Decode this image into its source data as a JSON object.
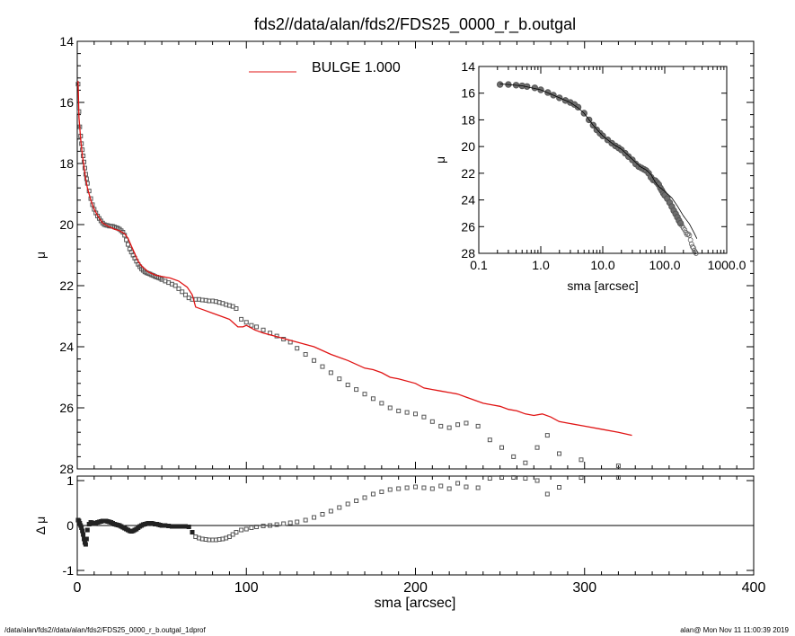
{
  "title": "fds2//data/alan/fds2/FDS25_0000_r_b.outgal",
  "footer_left": "/data/alan/fds2//data/alan/fds2/FDS25_0000_r_b.outgal_1dprof",
  "footer_right": "alan@  Mon Nov 11 11:00:39 2019",
  "colors": {
    "model": "#e01414",
    "data": "#555555",
    "axis": "#000000"
  },
  "chart_data": [
    {
      "id": "main",
      "type": "scatter",
      "ylabel": "μ",
      "xlim": [
        0,
        400
      ],
      "ylim": [
        14,
        28
      ],
      "y_inverted": true,
      "yticks": [
        14,
        16,
        18,
        20,
        22,
        24,
        26,
        28
      ],
      "legend": {
        "label": "BULGE  1.000",
        "placement": "top-center"
      },
      "series": [
        {
          "name": "BULGE  1.000",
          "kind": "line",
          "x": [
            0.5,
            1,
            2,
            3,
            4,
            5,
            6,
            8,
            10,
            12,
            15,
            18,
            20,
            22,
            25,
            28,
            30,
            32,
            34,
            36,
            38,
            40,
            42,
            44,
            46,
            50,
            55,
            60,
            65,
            68,
            70,
            75,
            80,
            85,
            90,
            93,
            95,
            98,
            100,
            105,
            110,
            120,
            130,
            140,
            150,
            160,
            170,
            175,
            180,
            185,
            190,
            200,
            205,
            210,
            215,
            220,
            225,
            230,
            235,
            240,
            245,
            250,
            255,
            260,
            265,
            270,
            275,
            280,
            285,
            290,
            300,
            310,
            320,
            328
          ],
          "y": [
            15.3,
            16.5,
            17.2,
            17.7,
            18.1,
            18.5,
            18.8,
            19.2,
            19.5,
            19.7,
            19.95,
            20.05,
            20.1,
            20.15,
            20.2,
            20.3,
            20.45,
            20.7,
            20.95,
            21.2,
            21.35,
            21.45,
            21.55,
            21.6,
            21.65,
            21.7,
            21.75,
            21.85,
            22.05,
            22.3,
            22.7,
            22.8,
            22.9,
            23.0,
            23.1,
            23.25,
            23.35,
            23.35,
            23.3,
            23.45,
            23.55,
            23.7,
            23.85,
            24.0,
            24.25,
            24.45,
            24.7,
            24.75,
            24.85,
            25.0,
            25.05,
            25.2,
            25.35,
            25.4,
            25.45,
            25.5,
            25.55,
            25.65,
            25.75,
            25.85,
            25.9,
            25.95,
            26.05,
            26.1,
            26.2,
            26.25,
            26.2,
            26.3,
            26.45,
            26.5,
            26.6,
            26.7,
            26.8,
            26.9
          ]
        },
        {
          "name": "data",
          "kind": "points",
          "x": [
            0.5,
            1,
            1.5,
            2,
            2.5,
            3,
            3.5,
            4,
            4.5,
            5,
            5.5,
            6,
            7,
            8,
            9,
            10,
            11,
            12,
            13,
            14,
            15,
            16,
            17,
            18,
            19,
            20,
            21,
            22,
            23,
            24,
            25,
            26,
            27,
            28,
            29,
            30,
            31,
            32,
            33,
            34,
            35,
            36,
            37,
            38,
            39,
            40,
            41,
            42,
            43,
            44,
            45,
            46,
            47,
            48,
            49,
            50,
            52,
            54,
            56,
            58,
            60,
            62,
            64,
            66,
            68,
            70,
            72,
            74,
            76,
            78,
            80,
            82,
            84,
            86,
            88,
            90,
            92,
            94,
            97,
            100,
            103,
            106,
            110,
            114,
            118,
            122,
            126,
            130,
            135,
            140,
            145,
            150,
            155,
            160,
            165,
            170,
            175,
            180,
            185,
            190,
            195,
            200,
            205,
            210,
            215,
            220,
            225,
            230,
            237,
            244,
            251,
            258,
            265,
            272,
            278,
            285,
            298,
            320
          ],
          "y": [
            15.4,
            16.3,
            16.8,
            17.1,
            17.35,
            17.55,
            17.75,
            17.95,
            18.15,
            18.35,
            18.5,
            18.65,
            18.9,
            19.15,
            19.35,
            19.5,
            19.62,
            19.72,
            19.8,
            19.88,
            19.95,
            20.0,
            20.02,
            20.03,
            20.05,
            20.05,
            20.06,
            20.08,
            20.1,
            20.12,
            20.15,
            20.2,
            20.25,
            20.35,
            20.5,
            20.65,
            20.8,
            20.9,
            21.0,
            21.1,
            21.2,
            21.3,
            21.38,
            21.45,
            21.5,
            21.55,
            21.58,
            21.6,
            21.62,
            21.65,
            21.67,
            21.7,
            21.72,
            21.74,
            21.76,
            21.8,
            21.85,
            21.9,
            21.95,
            22.0,
            22.1,
            22.2,
            22.3,
            22.4,
            22.45,
            22.45,
            22.45,
            22.47,
            22.48,
            22.5,
            22.5,
            22.52,
            22.55,
            22.58,
            22.62,
            22.65,
            22.68,
            22.75,
            23.1,
            23.2,
            23.3,
            23.35,
            23.45,
            23.55,
            23.65,
            23.75,
            23.85,
            24.05,
            24.25,
            24.45,
            24.65,
            24.85,
            25.05,
            25.25,
            25.4,
            25.55,
            25.7,
            25.85,
            26.0,
            26.1,
            26.15,
            26.2,
            26.3,
            26.45,
            26.6,
            26.65,
            26.55,
            26.5,
            26.6,
            27.05,
            27.3,
            27.6,
            27.8,
            27.3,
            26.9,
            27.5,
            27.7,
            27.9
          ]
        }
      ]
    },
    {
      "id": "residuals",
      "type": "scatter",
      "xlabel": "sma [arcsec]",
      "ylabel": "Δ μ",
      "xlim": [
        0,
        400
      ],
      "ylim": [
        -1.1,
        1.1
      ],
      "xticks": [
        0,
        100,
        200,
        300,
        400
      ],
      "yticks": [
        -1,
        0,
        1
      ],
      "zero_line": true,
      "series": [
        {
          "name": "residuals",
          "x": [
            0.5,
            1,
            1.5,
            2,
            2.5,
            3,
            3.5,
            4,
            4.5,
            5,
            5.5,
            6,
            7,
            8,
            9,
            10,
            11,
            12,
            13,
            14,
            15,
            16,
            17,
            18,
            19,
            20,
            21,
            22,
            23,
            24,
            25,
            26,
            27,
            28,
            29,
            30,
            31,
            32,
            33,
            34,
            35,
            36,
            37,
            38,
            39,
            40,
            41,
            42,
            43,
            44,
            45,
            46,
            47,
            48,
            49,
            50,
            52,
            54,
            56,
            58,
            60,
            62,
            64,
            66,
            68,
            70,
            72,
            74,
            76,
            78,
            80,
            82,
            84,
            86,
            88,
            90,
            92,
            94,
            97,
            100,
            103,
            106,
            110,
            114,
            118,
            122,
            126,
            130,
            135,
            140,
            145,
            150,
            155,
            160,
            165,
            170,
            175,
            180,
            185,
            190,
            195,
            200,
            205,
            210,
            215,
            220,
            225,
            230,
            237,
            244,
            251,
            258,
            265,
            272,
            278,
            285,
            298,
            320
          ],
          "y": [
            0.12,
            0.1,
            0.05,
            0.0,
            -0.05,
            -0.12,
            -0.2,
            -0.3,
            -0.38,
            -0.42,
            -0.3,
            -0.1,
            0.03,
            0.07,
            0.06,
            0.04,
            0.05,
            0.07,
            0.08,
            0.09,
            0.1,
            0.1,
            0.1,
            0.09,
            0.08,
            0.07,
            0.05,
            0.03,
            0.02,
            0.01,
            0.0,
            -0.02,
            -0.04,
            -0.06,
            -0.08,
            -0.1,
            -0.12,
            -0.13,
            -0.12,
            -0.1,
            -0.08,
            -0.05,
            -0.02,
            0.0,
            0.02,
            0.03,
            0.04,
            0.05,
            0.05,
            0.05,
            0.04,
            0.03,
            0.03,
            0.02,
            0.01,
            0.0,
            0.0,
            -0.01,
            -0.02,
            -0.02,
            -0.02,
            -0.02,
            -0.02,
            -0.03,
            -0.15,
            -0.25,
            -0.28,
            -0.3,
            -0.31,
            -0.32,
            -0.32,
            -0.32,
            -0.31,
            -0.3,
            -0.28,
            -0.25,
            -0.2,
            -0.15,
            -0.1,
            -0.08,
            -0.05,
            -0.03,
            -0.01,
            0.0,
            0.02,
            0.04,
            0.06,
            0.08,
            0.12,
            0.18,
            0.25,
            0.32,
            0.4,
            0.48,
            0.55,
            0.62,
            0.7,
            0.75,
            0.8,
            0.82,
            0.84,
            0.86,
            0.84,
            0.82,
            0.88,
            0.82,
            0.94,
            0.86,
            0.84,
            1.05,
            1.12,
            1.15,
            1.05,
            1.0,
            0.7,
            0.85,
            1.1,
            1.15
          ]
        }
      ]
    },
    {
      "id": "inset",
      "type": "scatter",
      "xlabel": "sma [arcsec]",
      "ylabel": "μ",
      "x_scale": "log",
      "xlim": [
        0.1,
        1000
      ],
      "ylim": [
        14,
        28
      ],
      "y_inverted": true,
      "xticks": [
        0.1,
        1,
        10,
        100,
        1000
      ],
      "xtick_labels": [
        "0.1",
        "1.0",
        "10.0",
        "100.0",
        "1000.0"
      ],
      "yticks": [
        14,
        16,
        18,
        20,
        22,
        24,
        26,
        28
      ],
      "series": [
        {
          "name": "data",
          "kind": "points",
          "x": [
            0.22,
            0.3,
            0.4,
            0.5,
            0.6,
            0.8,
            1.0,
            1.3,
            1.6,
            2.0,
            2.5,
            3.0,
            3.5,
            4.0,
            5.0,
            6.0,
            7.0,
            8.0,
            9.0,
            10,
            12,
            14,
            16,
            18,
            20,
            23,
            26,
            30,
            34,
            38,
            42,
            46,
            50,
            55,
            60,
            65,
            70,
            75,
            80,
            85,
            90,
            95,
            100,
            110,
            120,
            130,
            140,
            150,
            160,
            170,
            180,
            190,
            200,
            210,
            220,
            230,
            240,
            250,
            260,
            270,
            280,
            290,
            300,
            310,
            320
          ],
          "y": [
            15.35,
            15.35,
            15.4,
            15.45,
            15.5,
            15.6,
            15.75,
            15.95,
            16.15,
            16.35,
            16.55,
            16.7,
            16.85,
            17.05,
            17.5,
            18.0,
            18.4,
            18.75,
            19.0,
            19.2,
            19.5,
            19.75,
            19.95,
            20.1,
            20.25,
            20.5,
            20.75,
            21.0,
            21.3,
            21.5,
            21.6,
            21.7,
            21.8,
            22.0,
            22.3,
            22.5,
            22.55,
            22.7,
            22.85,
            23.1,
            23.3,
            23.5,
            23.65,
            23.9,
            24.2,
            24.5,
            24.8,
            25.05,
            25.3,
            25.55,
            25.75,
            25.95,
            26.1,
            26.25,
            26.45,
            26.6,
            26.55,
            26.65,
            27.0,
            27.3,
            27.5,
            27.6,
            27.8,
            27.9,
            28.0
          ]
        },
        {
          "name": "BULGE  1.000",
          "kind": "line",
          "x": [
            0.22,
            0.5,
            1.0,
            2.0,
            3.0,
            4.0,
            5.0,
            7.0,
            10,
            15,
            20,
            30,
            40,
            50,
            60,
            70,
            80,
            100,
            130,
            160,
            200,
            250,
            300,
            330
          ],
          "y": [
            15.3,
            15.45,
            15.75,
            16.35,
            16.7,
            17.1,
            17.5,
            18.4,
            19.2,
            19.85,
            20.2,
            20.95,
            21.5,
            21.75,
            22.1,
            22.65,
            23.0,
            23.35,
            23.85,
            24.45,
            25.2,
            25.8,
            26.5,
            26.9
          ]
        }
      ]
    }
  ]
}
